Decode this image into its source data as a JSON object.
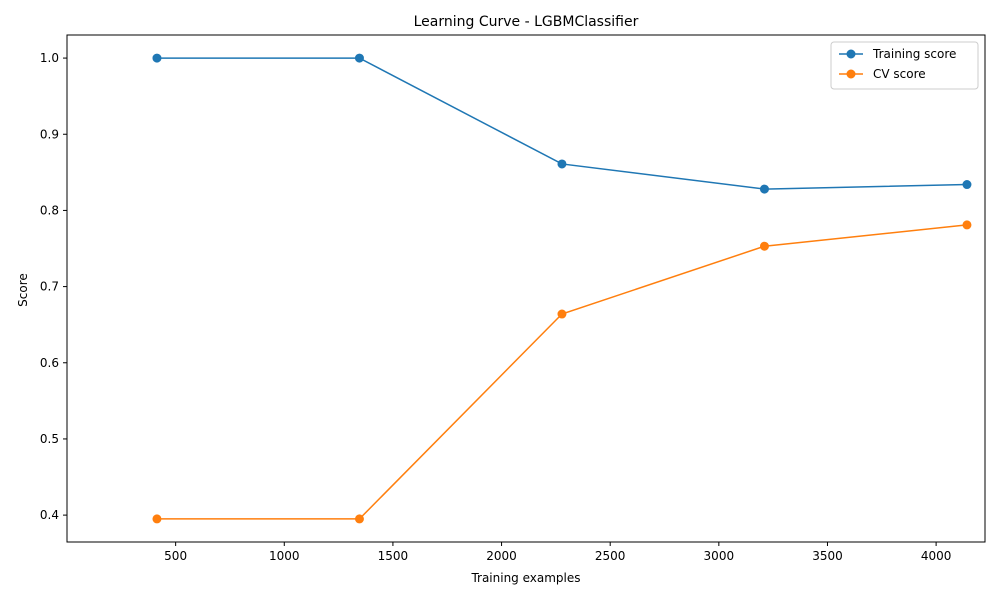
{
  "chart_data": {
    "type": "line",
    "title": "Learning Curve - LGBMClassifier",
    "xlabel": "Training examples",
    "ylabel": "Score",
    "x": [
      414,
      1346,
      2278,
      3210,
      4142
    ],
    "series": [
      {
        "name": "Training score",
        "values": [
          1.0,
          1.0,
          0.861,
          0.828,
          0.834
        ],
        "color": "#1f77b4"
      },
      {
        "name": "CV score",
        "values": [
          0.395,
          0.395,
          0.664,
          0.753,
          0.781
        ],
        "color": "#ff7f0e"
      }
    ],
    "xlim": [
      0,
      4225
    ],
    "ylim": [
      0.3647,
      1.0303
    ],
    "xticks": [
      500,
      1000,
      1500,
      2000,
      2500,
      3000,
      3500,
      4000
    ],
    "xtick_labels": [
      "500",
      "1000",
      "1500",
      "2000",
      "2500",
      "3000",
      "3500",
      "4000"
    ],
    "yticks": [
      0.4,
      0.5,
      0.6,
      0.7,
      0.8,
      0.9,
      1.0
    ],
    "ytick_labels": [
      "0.4",
      "0.5",
      "0.6",
      "0.7",
      "0.8",
      "0.9",
      "1.0"
    ],
    "grid": false,
    "legend_position": "upper-right",
    "marker": "circle"
  }
}
